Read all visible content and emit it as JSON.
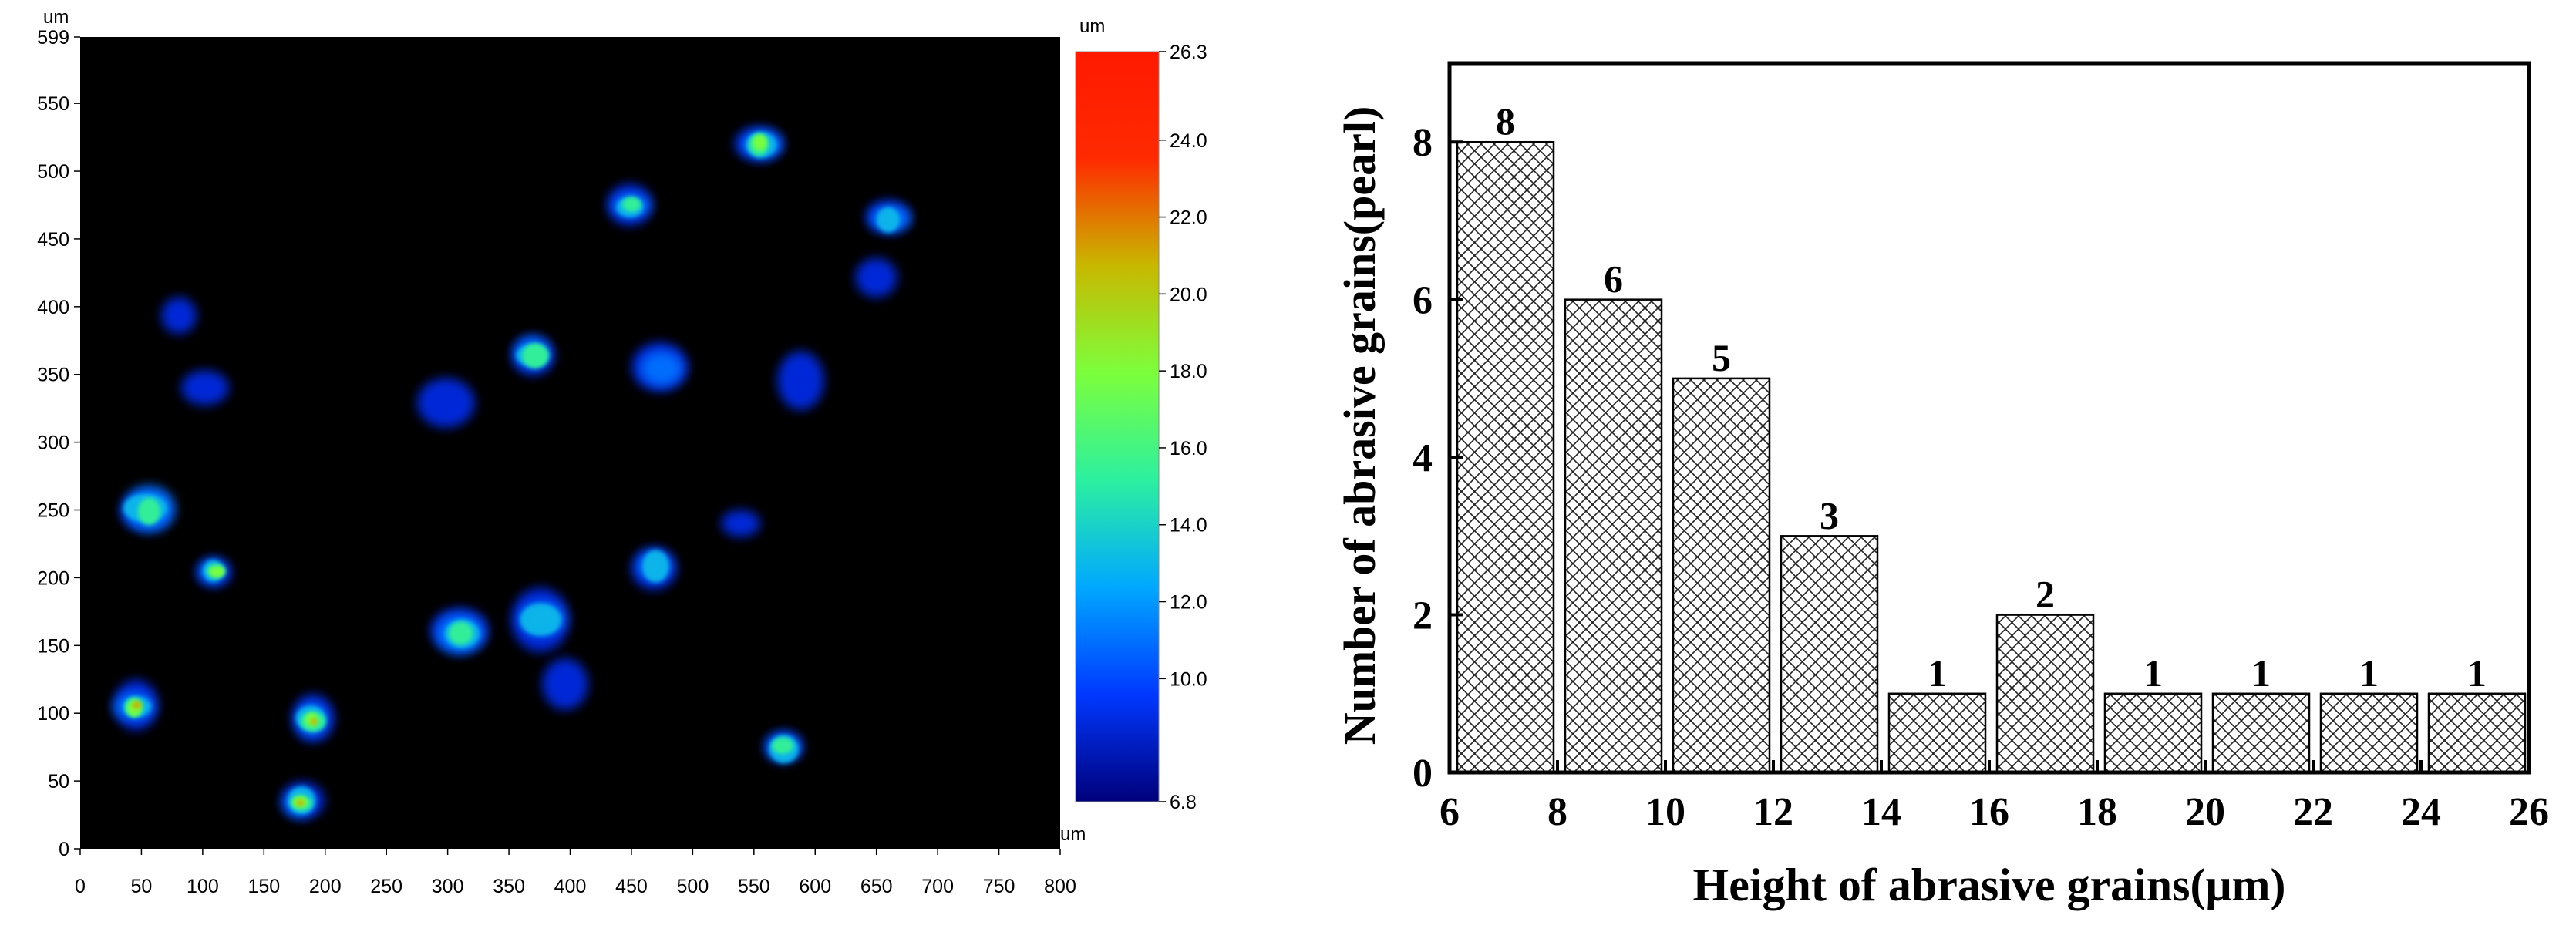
{
  "chart_data": [
    {
      "type": "heatmap",
      "title": "",
      "x_unit": "um",
      "y_unit": "um",
      "corner_unit": "um",
      "colorbar_unit": "um",
      "colorbar_bottom_unit": "um",
      "xlim": [
        0,
        800
      ],
      "ylim": [
        0,
        599
      ],
      "x_ticks": [
        "0",
        "50",
        "100",
        "150",
        "200",
        "250",
        "300",
        "350",
        "400",
        "450",
        "500",
        "550",
        "600",
        "650",
        "700",
        "750",
        "800"
      ],
      "y_ticks": [
        "0",
        "50",
        "100",
        "150",
        "200",
        "250",
        "300",
        "350",
        "400",
        "450",
        "500",
        "550",
        "599"
      ],
      "colorbar_ticks": [
        "26.3",
        "24.0",
        "22.0",
        "20.0",
        "18.0",
        "16.0",
        "14.0",
        "12.0",
        "10.0",
        "6.8"
      ],
      "colorbar_range": [
        6.8,
        26.3
      ],
      "colormap": [
        "#00007a",
        "#0038ff",
        "#00a8ff",
        "#2cf0a0",
        "#7cff3c",
        "#c8b800",
        "#ff2a00",
        "#ff1a00"
      ],
      "background": "#000000",
      "grains": [
        {
          "x": 555,
          "y": 520,
          "peak": 19.5
        },
        {
          "x": 450,
          "y": 475,
          "peak": 17.0
        },
        {
          "x": 660,
          "y": 465,
          "peak": 14.0
        },
        {
          "x": 650,
          "y": 420,
          "peak": 9.5
        },
        {
          "x": 80,
          "y": 395,
          "peak": 9.5
        },
        {
          "x": 370,
          "y": 365,
          "peak": 15.5
        },
        {
          "x": 475,
          "y": 355,
          "peak": 11.0
        },
        {
          "x": 590,
          "y": 345,
          "peak": 9.5
        },
        {
          "x": 100,
          "y": 340,
          "peak": 9.5
        },
        {
          "x": 300,
          "y": 330,
          "peak": 10.0
        },
        {
          "x": 55,
          "y": 250,
          "peak": 15.5
        },
        {
          "x": 540,
          "y": 240,
          "peak": 9.5
        },
        {
          "x": 110,
          "y": 205,
          "peak": 19.0
        },
        {
          "x": 470,
          "y": 208,
          "peak": 14.0
        },
        {
          "x": 310,
          "y": 160,
          "peak": 16.0
        },
        {
          "x": 375,
          "y": 170,
          "peak": 14.5
        },
        {
          "x": 395,
          "y": 120,
          "peak": 9.5
        },
        {
          "x": 45,
          "y": 105,
          "peak": 20.5
        },
        {
          "x": 190,
          "y": 95,
          "peak": 21.0
        },
        {
          "x": 575,
          "y": 75,
          "peak": 15.5
        },
        {
          "x": 180,
          "y": 35,
          "peak": 22.5
        }
      ]
    },
    {
      "type": "bar",
      "title": "",
      "xlabel": "Height of abrasive grains(μm)",
      "ylabel": "Number of abrasive grains(pearl)",
      "x_ticks": [
        6,
        8,
        10,
        12,
        14,
        16,
        18,
        20,
        22,
        24,
        26
      ],
      "xlim": [
        6,
        26
      ],
      "ylim": [
        0,
        9
      ],
      "y_ticks": [
        0,
        2,
        4,
        6,
        8
      ],
      "bins": [
        [
          6,
          8
        ],
        [
          8,
          10
        ],
        [
          10,
          12
        ],
        [
          12,
          14
        ],
        [
          14,
          16
        ],
        [
          16,
          18
        ],
        [
          18,
          20
        ],
        [
          20,
          22
        ],
        [
          22,
          24
        ],
        [
          24,
          26
        ]
      ],
      "values": [
        8,
        6,
        5,
        3,
        1,
        2,
        1,
        1,
        1,
        1
      ],
      "data_labels": [
        "8",
        "6",
        "5",
        "3",
        "1",
        "2",
        "1",
        "1",
        "1",
        "1"
      ],
      "bar_fill": "crosshatch",
      "grid": false
    }
  ]
}
